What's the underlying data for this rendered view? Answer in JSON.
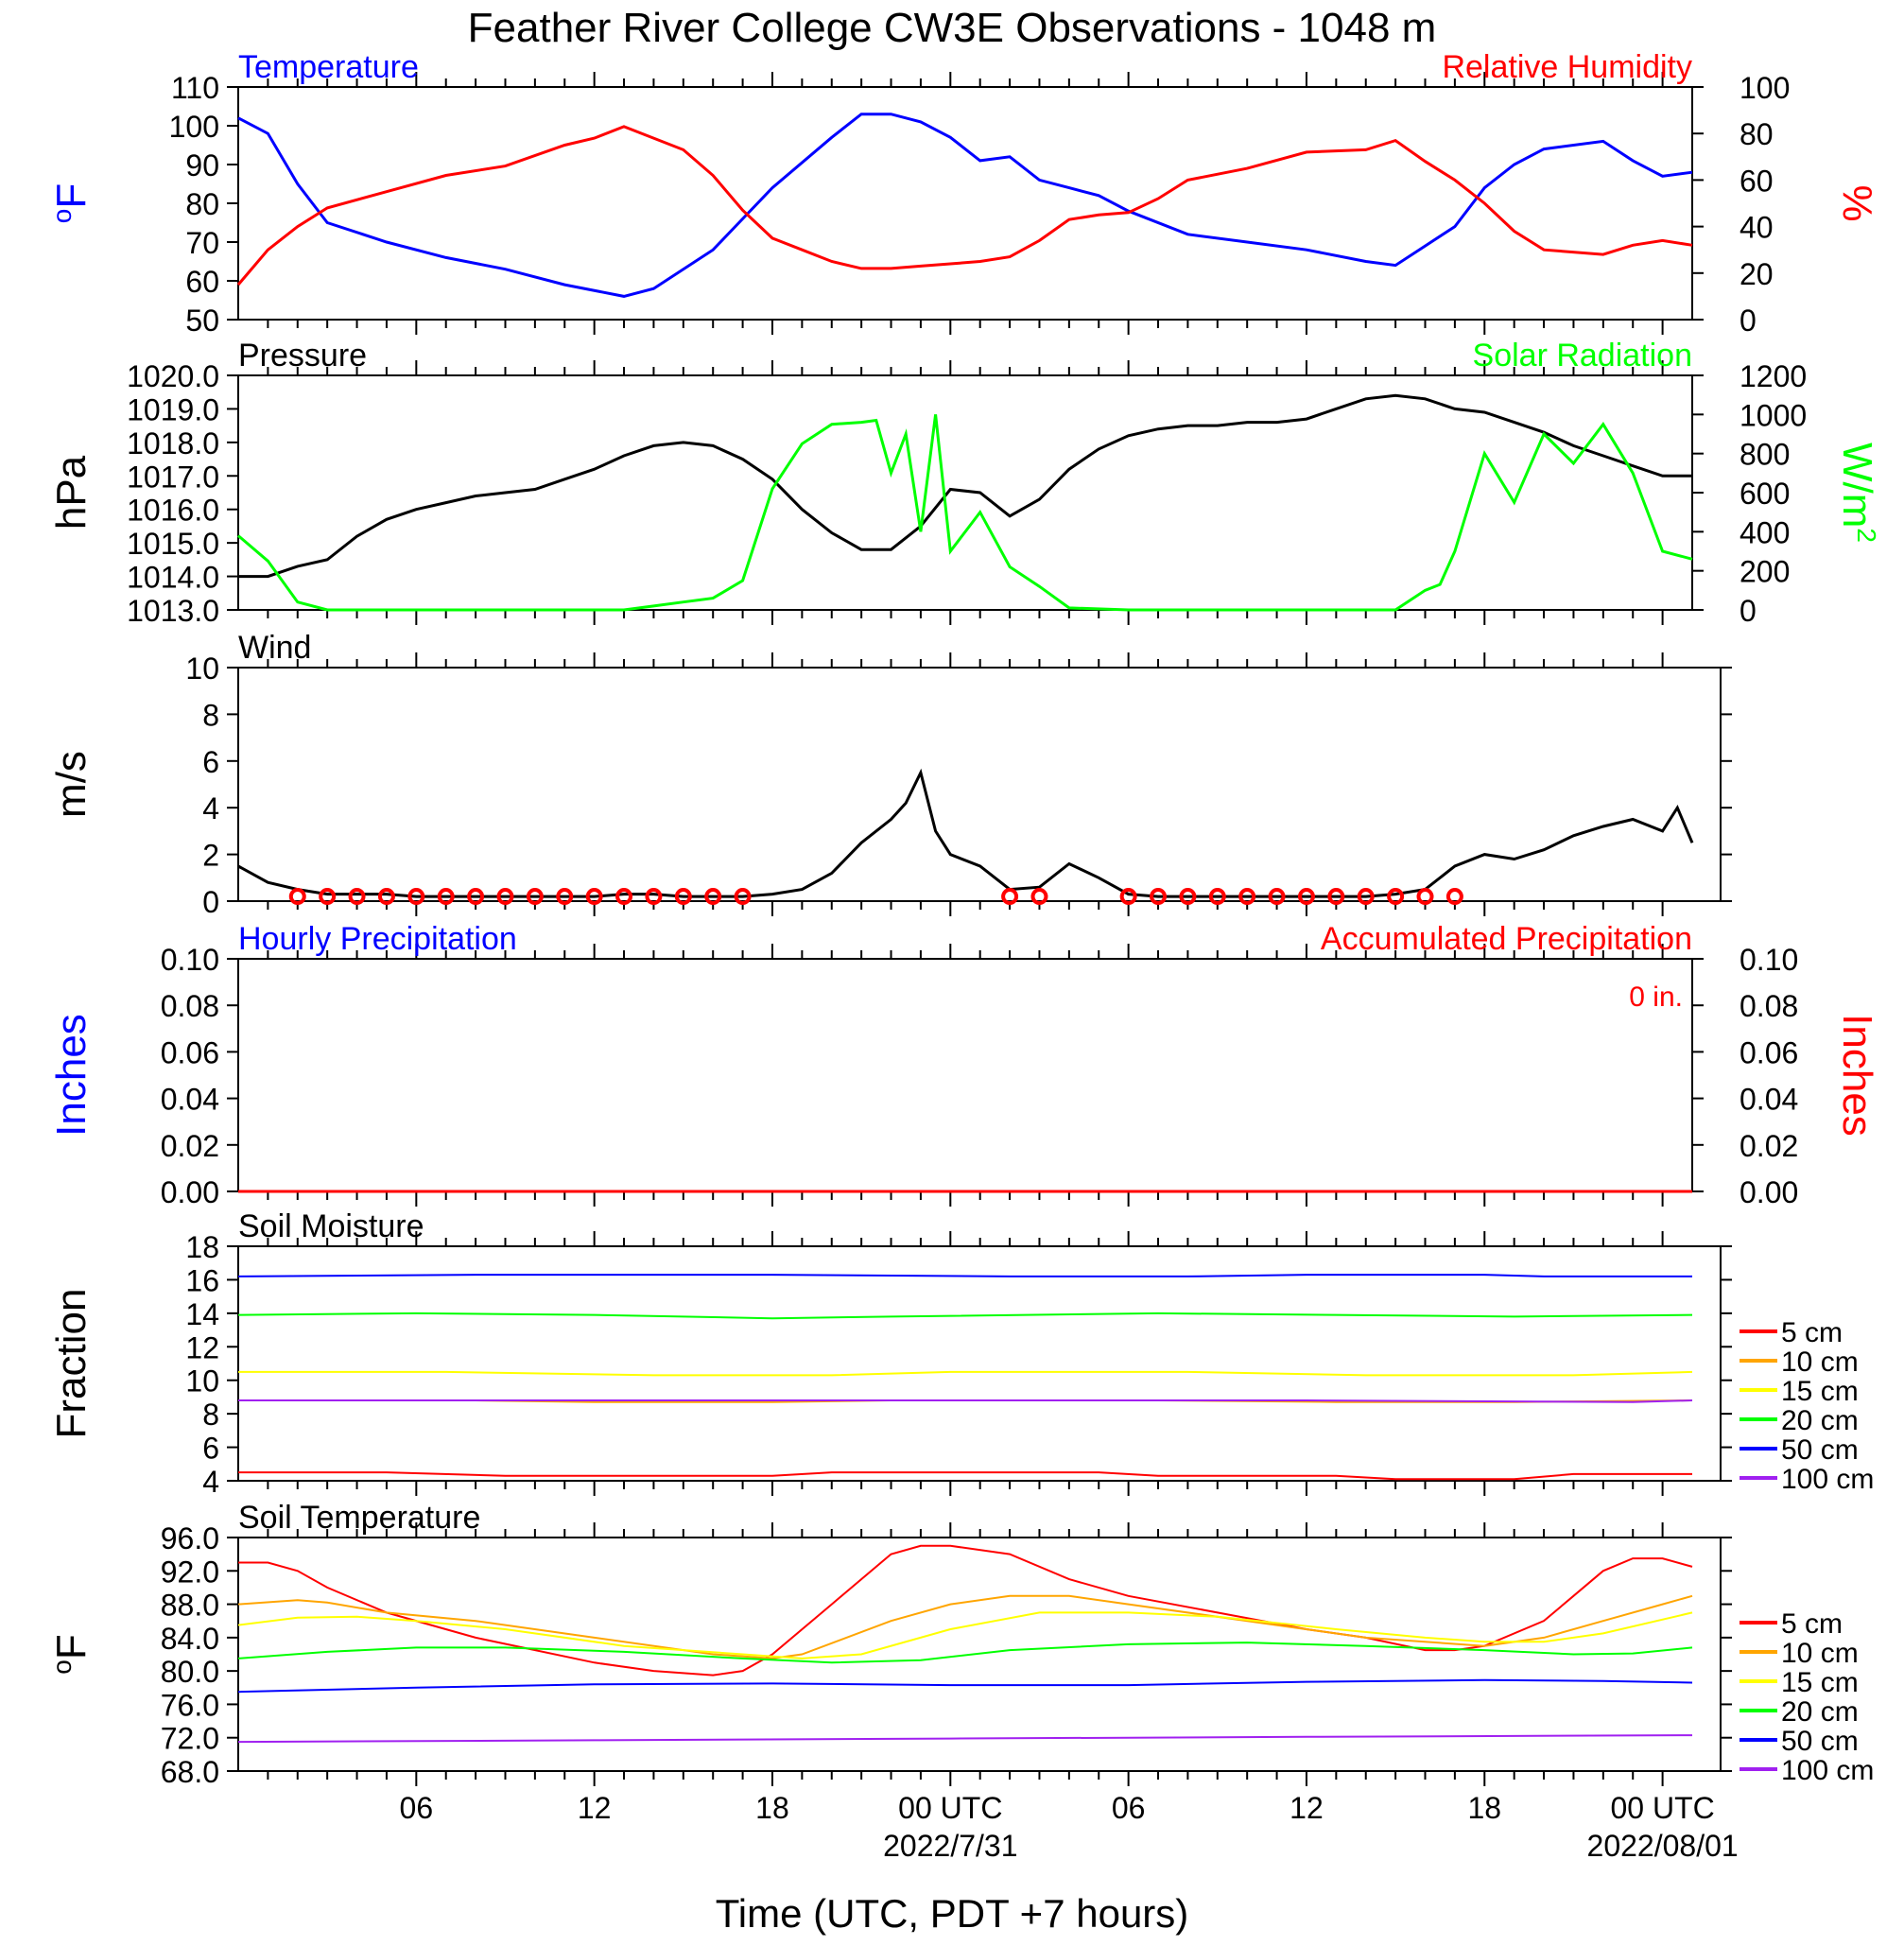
{
  "title": "Feather River College CW3E Observations - 1048 m",
  "x_axis": {
    "title": "Time (UTC, PDT +7 hours)",
    "tick_labels": [
      "06",
      "12",
      "18",
      "00 UTC",
      "06",
      "12",
      "18",
      "00 UTC"
    ],
    "tick_hours": [
      6,
      12,
      18,
      24,
      30,
      36,
      42,
      48
    ],
    "date_labels": [
      {
        "hour": 24,
        "text": "2022/7/31"
      },
      {
        "hour": 48,
        "text": "2022/08/01"
      }
    ],
    "range_hours": [
      0,
      49
    ]
  },
  "chart_data": [
    {
      "type": "line",
      "title_left": "Temperature",
      "title_right": "Relative Humidity",
      "left_axis": {
        "label": "oF",
        "ylim": [
          50,
          110
        ],
        "ticks": [
          "50",
          "60",
          "70",
          "80",
          "90",
          "100",
          "110"
        ],
        "color": "#0000ff"
      },
      "right_axis": {
        "label": "%",
        "ylim": [
          0,
          100
        ],
        "ticks": [
          "0",
          "20",
          "40",
          "60",
          "80",
          "100"
        ],
        "color": "#ff0000"
      },
      "series": [
        {
          "name": "Temperature",
          "axis": "left",
          "color": "#0000ff",
          "x": [
            0,
            1,
            2,
            3,
            5,
            7,
            9,
            11,
            13,
            14,
            16,
            17,
            18,
            20,
            21,
            22,
            23,
            24,
            25,
            26,
            27,
            28,
            29,
            30,
            32,
            34,
            36,
            38,
            39,
            40,
            41,
            42,
            43,
            44,
            46,
            47,
            48,
            49
          ],
          "values": [
            102,
            98,
            85,
            75,
            70,
            66,
            63,
            59,
            56,
            58,
            68,
            76,
            84,
            97,
            103,
            103,
            101,
            97,
            91,
            92,
            86,
            84,
            82,
            78,
            72,
            70,
            68,
            65,
            64,
            69,
            74,
            84,
            90,
            94,
            96,
            91,
            87,
            88
          ]
        },
        {
          "name": "Relative Humidity",
          "axis": "right",
          "color": "#ff0000",
          "x": [
            0,
            1,
            2,
            3,
            5,
            7,
            9,
            11,
            12,
            13,
            14,
            15,
            16,
            17,
            18,
            19,
            20,
            21,
            22,
            23,
            24,
            25,
            26,
            27,
            28,
            29,
            30,
            31,
            32,
            34,
            36,
            38,
            39,
            40,
            41,
            42,
            43,
            44,
            46,
            47,
            48,
            49
          ],
          "values": [
            15,
            30,
            40,
            48,
            55,
            62,
            66,
            75,
            78,
            83,
            78,
            73,
            62,
            47,
            35,
            30,
            25,
            22,
            22,
            23,
            24,
            25,
            27,
            34,
            43,
            45,
            46,
            52,
            60,
            65,
            72,
            73,
            77,
            68,
            60,
            50,
            38,
            30,
            28,
            32,
            34,
            32
          ]
        }
      ]
    },
    {
      "type": "line",
      "title_left": "Pressure",
      "title_right": "Solar Radiation",
      "left_axis": {
        "label": "hPa",
        "ylim": [
          1013,
          1020
        ],
        "ticks": [
          "1013.0",
          "1014.0",
          "1015.0",
          "1016.0",
          "1017.0",
          "1018.0",
          "1019.0",
          "1020.0"
        ],
        "color": "#000000"
      },
      "right_axis": {
        "label": "W/m2",
        "ylim": [
          0,
          1200
        ],
        "ticks": [
          "0",
          "200",
          "400",
          "600",
          "800",
          "1000",
          "1200"
        ],
        "color": "#00ff00"
      },
      "series": [
        {
          "name": "Pressure",
          "axis": "left",
          "color": "#000000",
          "x": [
            0,
            1,
            2,
            3,
            4,
            5,
            6,
            7,
            8,
            9,
            10,
            11,
            12,
            13,
            14,
            15,
            16,
            17,
            18,
            19,
            20,
            21,
            22,
            23,
            24,
            25,
            26,
            27,
            28,
            29,
            30,
            31,
            32,
            33,
            34,
            35,
            36,
            37,
            38,
            39,
            40,
            41,
            42,
            43,
            44,
            45,
            46,
            47,
            48,
            49
          ],
          "values": [
            1014,
            1014,
            1014.3,
            1014.5,
            1015.2,
            1015.7,
            1016,
            1016.2,
            1016.4,
            1016.5,
            1016.6,
            1016.9,
            1017.2,
            1017.6,
            1017.9,
            1018,
            1017.9,
            1017.5,
            1016.9,
            1016,
            1015.3,
            1014.8,
            1014.8,
            1015.5,
            1016.6,
            1016.5,
            1015.8,
            1016.3,
            1017.2,
            1017.8,
            1018.2,
            1018.4,
            1018.5,
            1018.5,
            1018.6,
            1018.6,
            1018.7,
            1019,
            1019.3,
            1019.4,
            1019.3,
            1019,
            1018.9,
            1018.6,
            1018.3,
            1017.9,
            1017.6,
            1017.3,
            1017,
            1017
          ]
        },
        {
          "name": "Solar Radiation",
          "axis": "right",
          "color": "#00ff00",
          "x": [
            0,
            1,
            2,
            3,
            5,
            10,
            13,
            14,
            15,
            16,
            17,
            18,
            19,
            20,
            21,
            21.5,
            22,
            22.5,
            23,
            23.5,
            24,
            25,
            26,
            27,
            28,
            30,
            34,
            35,
            36,
            37,
            38,
            39,
            40,
            40.5,
            41,
            42,
            43,
            44,
            45,
            46,
            47,
            48,
            49
          ],
          "values": [
            380,
            250,
            40,
            0,
            0,
            0,
            0,
            20,
            40,
            60,
            150,
            620,
            850,
            950,
            960,
            970,
            700,
            900,
            400,
            1000,
            300,
            500,
            220,
            120,
            10,
            0,
            0,
            0,
            0,
            0,
            0,
            0,
            100,
            130,
            300,
            800,
            550,
            900,
            750,
            950,
            700,
            300,
            260
          ]
        }
      ]
    },
    {
      "type": "line",
      "title_left": "Wind",
      "left_axis": {
        "label": "m/s",
        "ylim": [
          0,
          10
        ],
        "ticks": [
          "0",
          "2",
          "4",
          "6",
          "8",
          "10"
        ],
        "color": "#000000"
      },
      "series": [
        {
          "name": "Wind",
          "axis": "left",
          "color": "#000000",
          "x": [
            0,
            1,
            2,
            3,
            4,
            5,
            6,
            7,
            8,
            9,
            10,
            11,
            12,
            13,
            14,
            15,
            16,
            17,
            18,
            19,
            20,
            21,
            22,
            22.5,
            23,
            23.5,
            24,
            25,
            26,
            27,
            28,
            29,
            30,
            31,
            32,
            33,
            34,
            35,
            36,
            37,
            38,
            39,
            40,
            41,
            42,
            43,
            44,
            45,
            46,
            47,
            48,
            48.5,
            49
          ],
          "values": [
            1.5,
            0.8,
            0.5,
            0.3,
            0.3,
            0.3,
            0.2,
            0.2,
            0.2,
            0.2,
            0.2,
            0.2,
            0.2,
            0.3,
            0.3,
            0.2,
            0.2,
            0.2,
            0.3,
            0.5,
            1.2,
            2.5,
            3.5,
            4.2,
            5.5,
            3,
            2,
            1.5,
            0.5,
            0.6,
            1.6,
            1,
            0.3,
            0.2,
            0.2,
            0.2,
            0.2,
            0.2,
            0.2,
            0.2,
            0.2,
            0.3,
            0.5,
            1.5,
            2,
            1.8,
            2.2,
            2.8,
            3.2,
            3.5,
            3,
            4,
            2.5
          ]
        }
      ],
      "wind_markers_hours": [
        2,
        3,
        4,
        5,
        6,
        7,
        8,
        9,
        10,
        11,
        12,
        13,
        14,
        15,
        16,
        17,
        26,
        27,
        30,
        31,
        32,
        33,
        34,
        35,
        36,
        37,
        38,
        39,
        40,
        41
      ]
    },
    {
      "type": "line",
      "title_left": "Hourly Precipitation",
      "title_right": "Accumulated Precipitation",
      "annotation": "0 in.",
      "left_axis": {
        "label": "Inches",
        "ylim": [
          0,
          0.1
        ],
        "ticks": [
          "0.00",
          "0.02",
          "0.04",
          "0.06",
          "0.08",
          "0.10"
        ],
        "color": "#0000ff"
      },
      "right_axis": {
        "label": "Inches",
        "ylim": [
          0,
          0.1
        ],
        "ticks": [
          "0.00",
          "0.02",
          "0.04",
          "0.06",
          "0.08",
          "0.10"
        ],
        "color": "#ff0000"
      },
      "series": [
        {
          "name": "Accumulated Precipitation",
          "axis": "right",
          "color": "#ff0000",
          "x": [
            0,
            49
          ],
          "values": [
            0,
            0
          ]
        }
      ]
    },
    {
      "type": "line",
      "title_left": "Soil Moisture",
      "left_axis": {
        "label": "Fraction",
        "ylim": [
          4,
          18
        ],
        "ticks": [
          "4",
          "6",
          "8",
          "10",
          "12",
          "14",
          "16",
          "18"
        ],
        "color": "#000000"
      },
      "legend": {
        "entries": [
          "5 cm",
          "10 cm",
          "15 cm",
          "20 cm",
          "50 cm",
          "100 cm"
        ]
      },
      "series": [
        {
          "name": "5 cm",
          "color": "#ff0000",
          "x": [
            0,
            5,
            9,
            18,
            20,
            29,
            31,
            37,
            39,
            43,
            45,
            49
          ],
          "values": [
            4.5,
            4.5,
            4.3,
            4.3,
            4.5,
            4.5,
            4.3,
            4.3,
            4.1,
            4.1,
            4.4,
            4.4
          ]
        },
        {
          "name": "10 cm",
          "color": "#ffa500",
          "x": [
            0,
            8,
            12,
            18,
            22,
            31,
            37,
            43,
            49
          ],
          "values": [
            8.8,
            8.8,
            8.7,
            8.7,
            8.8,
            8.8,
            8.7,
            8.7,
            8.8
          ]
        },
        {
          "name": "15 cm",
          "color": "#ffff00",
          "x": [
            0,
            7,
            14,
            20,
            24,
            32,
            38,
            45,
            49
          ],
          "values": [
            10.5,
            10.5,
            10.3,
            10.3,
            10.5,
            10.5,
            10.3,
            10.3,
            10.5
          ]
        },
        {
          "name": "20 cm",
          "color": "#00ff00",
          "x": [
            0,
            6,
            12,
            18,
            22,
            31,
            37,
            43,
            49
          ],
          "values": [
            13.9,
            14,
            13.9,
            13.7,
            13.8,
            14,
            13.9,
            13.8,
            13.9
          ]
        },
        {
          "name": "50 cm",
          "color": "#0000ff",
          "x": [
            0,
            8,
            18,
            26,
            32,
            36,
            42,
            44,
            49
          ],
          "values": [
            16.2,
            16.3,
            16.3,
            16.2,
            16.2,
            16.3,
            16.3,
            16.2,
            16.2
          ]
        },
        {
          "name": "100 cm",
          "color": "#a020f0",
          "x": [
            0,
            12,
            24,
            36,
            47,
            49
          ],
          "values": [
            8.8,
            8.8,
            8.8,
            8.8,
            8.7,
            8.8
          ]
        }
      ]
    },
    {
      "type": "line",
      "title_left": "Soil Temperature",
      "left_axis": {
        "label": "oF",
        "ylim": [
          68,
          96
        ],
        "ticks": [
          "68.0",
          "72.0",
          "76.0",
          "80.0",
          "84.0",
          "88.0",
          "92.0",
          "96.0"
        ],
        "color": "#000000"
      },
      "legend": {
        "entries": [
          "5 cm",
          "10 cm",
          "15 cm",
          "20 cm",
          "50 cm",
          "100 cm"
        ]
      },
      "series": [
        {
          "name": "5 cm",
          "color": "#ff0000",
          "x": [
            0,
            1,
            2,
            3,
            5,
            8,
            12,
            14,
            16,
            17,
            18,
            20,
            22,
            23,
            24,
            26,
            28,
            30,
            33,
            36,
            38,
            40,
            41,
            42,
            44,
            45,
            46,
            47,
            48,
            49
          ],
          "values": [
            93,
            93,
            92,
            90,
            87,
            84,
            81,
            80,
            79.5,
            80,
            82,
            88,
            94,
            95,
            95,
            94,
            91,
            89,
            87,
            85,
            84,
            82.5,
            82.5,
            83,
            86,
            89,
            92,
            93.5,
            93.5,
            92.5
          ]
        },
        {
          "name": "10 cm",
          "color": "#ffa500",
          "x": [
            0,
            2,
            3,
            5,
            8,
            12,
            16,
            18,
            19,
            22,
            24,
            26,
            28,
            30,
            34,
            38,
            42,
            44,
            46,
            48,
            49
          ],
          "values": [
            88,
            88.5,
            88.2,
            87,
            86,
            84,
            82,
            81.5,
            82,
            86,
            88,
            89,
            89,
            88,
            86,
            84,
            83,
            84,
            86,
            88,
            89
          ]
        },
        {
          "name": "15 cm",
          "color": "#ffff00",
          "x": [
            0,
            2,
            4,
            6,
            9,
            13,
            17,
            19,
            21,
            24,
            27,
            30,
            33,
            37,
            40,
            42,
            44,
            46,
            49
          ],
          "values": [
            85.5,
            86.4,
            86.5,
            86,
            85,
            83,
            82,
            81.5,
            82,
            85,
            87,
            87,
            86.5,
            85,
            84,
            83.5,
            83.5,
            84.5,
            87
          ]
        },
        {
          "name": "20 cm",
          "color": "#00ff00",
          "x": [
            0,
            3,
            6,
            9,
            13,
            17,
            20,
            23,
            26,
            30,
            34,
            38,
            42,
            45,
            47,
            49
          ],
          "values": [
            81.5,
            82.3,
            82.8,
            82.8,
            82.3,
            81.5,
            81,
            81.3,
            82.5,
            83.2,
            83.4,
            83,
            82.5,
            82,
            82.1,
            82.8
          ]
        },
        {
          "name": "50 cm",
          "color": "#0000ff",
          "x": [
            0,
            6,
            12,
            18,
            24,
            30,
            36,
            42,
            46,
            49
          ],
          "values": [
            77.5,
            78,
            78.4,
            78.5,
            78.3,
            78.3,
            78.7,
            78.9,
            78.8,
            78.6
          ]
        },
        {
          "name": "100 cm",
          "color": "#a020f0",
          "x": [
            0,
            12,
            24,
            36,
            49
          ],
          "values": [
            71.5,
            71.7,
            71.9,
            72.1,
            72.3
          ]
        }
      ]
    }
  ]
}
